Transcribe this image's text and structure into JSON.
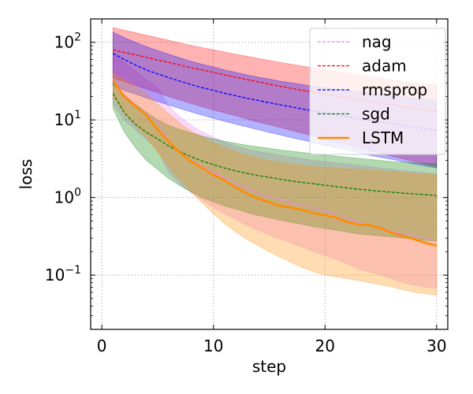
{
  "chart_data": {
    "type": "line",
    "yscale": "log",
    "xlabel": "step",
    "ylabel": "loss",
    "xlim": [
      -1,
      31
    ],
    "ylim": [
      0.02,
      200
    ],
    "x_ticks": [
      0,
      10,
      20,
      30
    ],
    "x_tick_labels": [
      "0",
      "10",
      "20",
      "30"
    ],
    "y_ticks": [
      0.1,
      1,
      10,
      100
    ],
    "y_tick_labels": [
      {
        "base": "10",
        "exp": "−1"
      },
      {
        "base": "10",
        "exp": "0"
      },
      {
        "base": "10",
        "exp": "1"
      },
      {
        "base": "10",
        "exp": "2"
      }
    ],
    "grid": true,
    "legend_position": "top-right",
    "x": [
      1,
      2,
      3,
      4,
      5,
      6,
      7,
      8,
      9,
      10,
      11,
      12,
      13,
      14,
      15,
      16,
      17,
      18,
      19,
      20,
      21,
      22,
      23,
      24,
      25,
      26,
      27,
      28,
      29,
      30
    ],
    "series": [
      {
        "name": "nag",
        "color": "#ee82ee",
        "dash": true,
        "values": [
          32,
          21,
          15.5,
          12.1,
          9.6,
          5.2,
          3.8,
          3.0,
          2.5,
          2.1,
          1.8,
          1.52,
          1.3,
          1.15,
          1.02,
          0.93,
          0.85,
          0.79,
          0.73,
          0.68,
          0.6,
          0.53,
          0.48,
          0.44,
          0.41,
          0.37,
          0.34,
          0.32,
          0.3,
          0.28
        ],
        "upper": [
          70,
          55,
          43,
          33,
          26,
          15,
          11,
          8.6,
          7.0,
          6.0,
          5.2,
          4.6,
          4.2,
          3.9,
          3.7,
          3.5,
          3.3,
          3.15,
          3.0,
          2.9,
          2.8,
          2.7,
          2.6,
          2.5,
          2.4,
          2.3,
          2.22,
          2.15,
          2.08,
          2.0
        ],
        "lower": [
          16,
          10,
          7.5,
          5.6,
          4.2,
          2.1,
          1.5,
          1.15,
          0.92,
          0.75,
          0.62,
          0.52,
          0.44,
          0.38,
          0.33,
          0.29,
          0.26,
          0.23,
          0.2,
          0.18,
          0.16,
          0.14,
          0.12,
          0.11,
          0.1,
          0.09,
          0.08,
          0.075,
          0.07,
          0.068
        ]
      },
      {
        "name": "adam",
        "color": "#ff0000",
        "dash": true,
        "values": [
          80,
          74,
          69,
          64,
          59,
          55,
          51,
          47,
          44,
          41,
          38,
          35.5,
          33,
          31,
          29,
          27,
          25.5,
          24,
          22.7,
          21.5,
          20.3,
          19.2,
          18.2,
          17.3,
          16.4,
          15.6,
          14.8,
          14.1,
          13.5,
          12.9
        ],
        "upper": [
          155,
          143,
          133,
          123,
          114,
          106,
          98,
          91,
          85,
          80,
          75,
          70,
          66,
          62,
          58.5,
          55,
          52,
          49,
          46.5,
          44,
          42,
          40,
          38,
          36,
          34,
          32.5,
          31,
          30,
          29,
          28
        ],
        "lower": [
          35,
          31,
          28,
          25,
          22.5,
          20,
          18,
          16.3,
          14.8,
          13.5,
          12.3,
          11.3,
          10.3,
          9.4,
          8.7,
          8.0,
          7.3,
          6.7,
          6.2,
          5.7,
          5.2,
          4.8,
          4.4,
          4.0,
          3.7,
          3.4,
          3.15,
          2.9,
          2.7,
          2.5
        ]
      },
      {
        "name": "rmsprop",
        "color": "#0000ff",
        "dash": true,
        "values": [
          72,
          60,
          51,
          44,
          39,
          35,
          31.5,
          28.5,
          26,
          24,
          22,
          20.5,
          19,
          17.8,
          16.7,
          15.6,
          14.7,
          13.8,
          13,
          12.3,
          11.6,
          11,
          10.4,
          9.9,
          9.4,
          8.9,
          8.5,
          8.1,
          7.7,
          7.3
        ],
        "upper": [
          135,
          115,
          100,
          88,
          78,
          70,
          63,
          57,
          52,
          48,
          44,
          41,
          38,
          35.5,
          33.5,
          31.5,
          30,
          28.5,
          27.2,
          26,
          25,
          24,
          23,
          22,
          21.2,
          20.5,
          19.8,
          19.1,
          18.5,
          18
        ],
        "lower": [
          28,
          24,
          21.5,
          19.2,
          17.3,
          15.5,
          14,
          12.7,
          11.5,
          10.5,
          9.6,
          8.8,
          8.1,
          7.5,
          6.9,
          6.4,
          5.9,
          5.5,
          5.1,
          4.7,
          4.4,
          4.1,
          3.8,
          3.5,
          3.3,
          3.1,
          2.9,
          2.7,
          2.55,
          2.4
        ]
      },
      {
        "name": "sgd",
        "color": "#008000",
        "dash": true,
        "values": [
          22,
          12.5,
          8.8,
          6.9,
          5.7,
          4.6,
          3.9,
          3.35,
          2.95,
          2.65,
          2.4,
          2.2,
          2.05,
          1.92,
          1.82,
          1.72,
          1.63,
          1.56,
          1.5,
          1.44,
          1.38,
          1.33,
          1.28,
          1.24,
          1.2,
          1.17,
          1.14,
          1.11,
          1.09,
          1.06
        ],
        "upper": [
          30,
          21,
          16,
          12.5,
          10,
          8.5,
          7.5,
          6.8,
          6.2,
          5.7,
          5.3,
          5.0,
          4.7,
          4.5,
          4.3,
          4.1,
          3.95,
          3.8,
          3.65,
          3.5,
          3.4,
          3.3,
          3.2,
          3.1,
          3.0,
          2.9,
          2.85,
          2.8,
          2.75,
          2.7
        ],
        "lower": [
          14,
          7,
          4.4,
          3.0,
          2.3,
          1.75,
          1.42,
          1.18,
          1.0,
          0.88,
          0.78,
          0.71,
          0.64,
          0.59,
          0.55,
          0.51,
          0.48,
          0.45,
          0.42,
          0.4,
          0.38,
          0.36,
          0.34,
          0.33,
          0.32,
          0.31,
          0.3,
          0.29,
          0.28,
          0.275
        ]
      },
      {
        "name": "LSTM",
        "color": "#ff8c00",
        "dash": false,
        "values": [
          32,
          20,
          15,
          11.5,
          7.5,
          5.2,
          3.8,
          2.9,
          2.4,
          1.95,
          1.65,
          1.35,
          1.12,
          0.97,
          0.87,
          0.78,
          0.74,
          0.69,
          0.63,
          0.59,
          0.55,
          0.48,
          0.45,
          0.44,
          0.4,
          0.35,
          0.32,
          0.29,
          0.26,
          0.24
        ],
        "upper": [
          40,
          33,
          27,
          22,
          16,
          12,
          9,
          7.2,
          6.0,
          5.1,
          4.4,
          3.9,
          3.5,
          3.2,
          3.0,
          2.85,
          2.7,
          2.6,
          2.5,
          2.45,
          2.4,
          2.35,
          2.3,
          2.25,
          2.2,
          2.15,
          2.1,
          2.05,
          2.0,
          1.95
        ],
        "lower": [
          20,
          12,
          8.5,
          6.0,
          3.8,
          2.5,
          1.7,
          1.2,
          0.85,
          0.62,
          0.46,
          0.36,
          0.29,
          0.24,
          0.2,
          0.17,
          0.145,
          0.125,
          0.11,
          0.1,
          0.095,
          0.09,
          0.085,
          0.08,
          0.075,
          0.07,
          0.065,
          0.06,
          0.058,
          0.055
        ]
      }
    ]
  }
}
